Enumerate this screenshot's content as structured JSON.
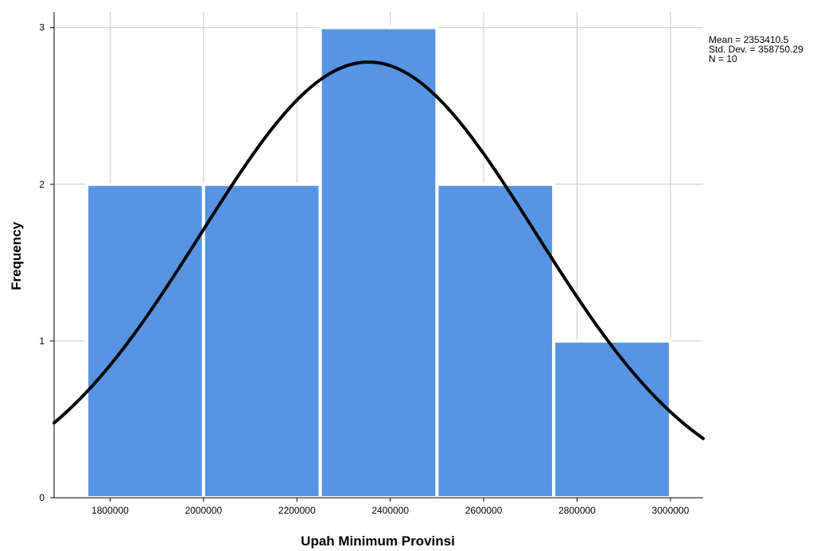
{
  "chart_data": {
    "type": "histogram",
    "xlabel": "Upah Minimum Provinsi",
    "ylabel": "Frequency",
    "xlim": [
      1680000,
      3070000
    ],
    "ylim": [
      0,
      3.1
    ],
    "x_ticks": [
      1800000,
      2000000,
      2200000,
      2400000,
      2600000,
      2800000,
      3000000
    ],
    "y_ticks": [
      0,
      1,
      2,
      3
    ],
    "grid": true,
    "bins": [
      {
        "start": 1750000,
        "end": 2000000,
        "count": 2
      },
      {
        "start": 2000000,
        "end": 2250000,
        "count": 2
      },
      {
        "start": 2250000,
        "end": 2500000,
        "count": 3
      },
      {
        "start": 2500000,
        "end": 2750000,
        "count": 2
      },
      {
        "start": 2750000,
        "end": 3000000,
        "count": 1
      }
    ],
    "bar_color": "#5795e3",
    "normal_curve": {
      "mean": 2353410.5,
      "std": 358750.29,
      "n": 10,
      "bin_width": 250000,
      "color": "#000000"
    },
    "stats_text": [
      "Mean = 2353410.5",
      "Std. Dev. = 358750.29",
      "N = 10"
    ],
    "stats_position": "top-right"
  }
}
